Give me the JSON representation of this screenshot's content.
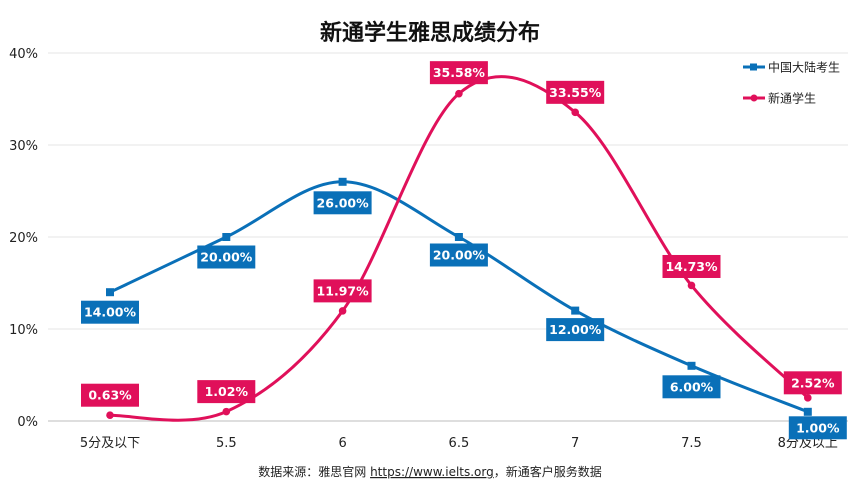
{
  "chart_data": {
    "type": "line",
    "title": "新通学生雅思成绩分布",
    "categories": [
      "5分及以下",
      "5.5",
      "6",
      "6.5",
      "7",
      "7.5",
      "8分及以上"
    ],
    "yticks": [
      "0%",
      "10%",
      "20%",
      "30%",
      "40%"
    ],
    "ylim": [
      0,
      40
    ],
    "xlabel": "",
    "ylabel": "",
    "grid": true,
    "legend_position": "top-right",
    "series": [
      {
        "name": "中国大陆考生",
        "color": "#0a70b8",
        "marker": "square",
        "values": [
          14.0,
          20.0,
          26.0,
          20.0,
          12.0,
          6.0,
          1.0
        ],
        "labels": [
          "14.00%",
          "20.00%",
          "26.00%",
          "20.00%",
          "12.00%",
          "6.00%",
          "1.00%"
        ]
      },
      {
        "name": "新通学生",
        "color": "#e0105a",
        "marker": "circle",
        "values": [
          0.63,
          1.02,
          11.97,
          35.58,
          33.55,
          14.73,
          2.52
        ],
        "labels": [
          "0.63%",
          "1.02%",
          "11.97%",
          "35.58%",
          "33.55%",
          "14.73%",
          "2.52%"
        ]
      }
    ],
    "source_prefix": "数据来源：雅思官网 ",
    "source_link": "https://www.ielts.org",
    "source_suffix": "，新通客户服务数据"
  }
}
